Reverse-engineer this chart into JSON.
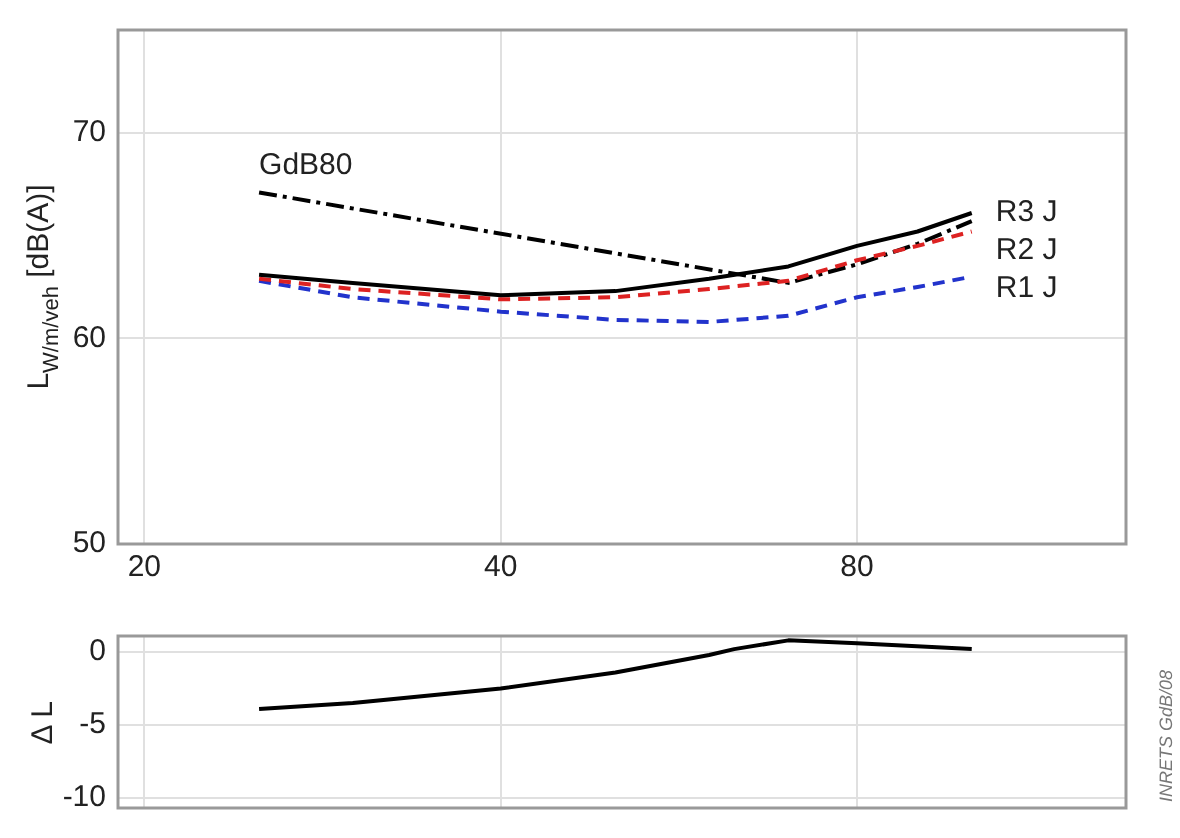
{
  "chart_data": [
    {
      "type": "line",
      "ylabel": "L$_{W/m/veh}$ [dB(A)]",
      "x": [
        25,
        30,
        40,
        50,
        60,
        70,
        80,
        90,
        100
      ],
      "log": "x",
      "xlim": [
        19,
        135
      ],
      "xticks": [
        20,
        40,
        80
      ],
      "ylim": [
        50,
        75
      ],
      "yticks": [
        50,
        60,
        70
      ],
      "grid": true,
      "legend": false,
      "series": [
        {
          "name": "R3 J",
          "color": "#000000",
          "line_style": "solid",
          "values": [
            63.1,
            62.7,
            62.1,
            62.3,
            62.9,
            63.5,
            64.5,
            65.2,
            66.1
          ]
        },
        {
          "name": "R2 J",
          "color": "#dd2222",
          "line_style": "dashed",
          "values": [
            62.9,
            62.4,
            61.9,
            62.0,
            62.4,
            62.8,
            63.8,
            64.5,
            65.2
          ]
        },
        {
          "name": "R1 J",
          "color": "#2233cc",
          "line_style": "dashed",
          "values": [
            62.8,
            62.0,
            61.3,
            60.9,
            60.8,
            61.1,
            62.0,
            62.5,
            63.0
          ]
        },
        {
          "name": "GdB80",
          "color": "#000000",
          "line_style": "dashdot",
          "x": [
            25,
            70,
            80,
            90,
            100
          ],
          "values": [
            67.1,
            62.7,
            63.6,
            64.6,
            65.7
          ]
        }
      ]
    },
    {
      "type": "line",
      "ylabel": "Δ L",
      "x": [
        25,
        30,
        40,
        50,
        60,
        63,
        70,
        80,
        100
      ],
      "log": "x",
      "xlim": [
        19,
        135
      ],
      "xticks": [
        20,
        40,
        80
      ],
      "ylim": [
        -10.7,
        1.1
      ],
      "yticks": [
        -10,
        -5,
        0
      ],
      "grid": true,
      "legend": false,
      "tick_labels": "y",
      "annotations": [
        "INRETS GdB/08"
      ],
      "series": [
        {
          "color": "#000000",
          "line_style": "solid",
          "values": [
            -3.9,
            -3.5,
            -2.5,
            -1.4,
            -0.2,
            0.2,
            0.8,
            0.6,
            0.2
          ]
        }
      ]
    }
  ]
}
